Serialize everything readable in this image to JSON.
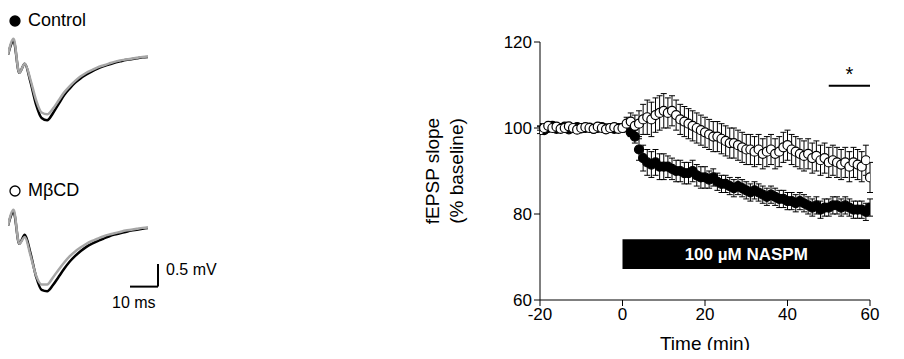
{
  "chart_data": [
    {
      "type": "scatter",
      "x_label": "Time (min)",
      "y_label": "fEPSP slope (% baseline)",
      "x": [
        -20,
        -19,
        -18,
        -17,
        -16,
        -15,
        -14,
        -13,
        -12,
        -11,
        -10,
        -9,
        -8,
        -7,
        -6,
        -5,
        -4,
        -3,
        -2,
        -1,
        0,
        1,
        2,
        3,
        4,
        5,
        6,
        7,
        8,
        9,
        10,
        11,
        12,
        13,
        14,
        15,
        16,
        17,
        18,
        19,
        20,
        21,
        22,
        23,
        24,
        25,
        26,
        27,
        28,
        29,
        30,
        31,
        32,
        33,
        34,
        35,
        36,
        37,
        38,
        39,
        40,
        41,
        42,
        43,
        44,
        45,
        46,
        47,
        48,
        49,
        50,
        51,
        52,
        53,
        54,
        55,
        56,
        57,
        58,
        59,
        60
      ],
      "series": [
        {
          "name": "Control",
          "color": "#000000",
          "marker": "filled_circle",
          "values": [
            100,
            99.5,
            100,
            100.5,
            99.8,
            100,
            100.3,
            99.7,
            100,
            100.2,
            99.9,
            100,
            100.1,
            99.8,
            100,
            100.2,
            99.9,
            100,
            99.8,
            100,
            100,
            100.5,
            99,
            98,
            95,
            93,
            92,
            91.5,
            92,
            91,
            91,
            91,
            90.5,
            90,
            90,
            89.5,
            89.5,
            90,
            89,
            88.5,
            88.5,
            88,
            88.5,
            87.5,
            87,
            87,
            86.5,
            86,
            86.5,
            86,
            85.5,
            85,
            85.5,
            85,
            84.5,
            84,
            84.5,
            84,
            83.5,
            83.5,
            83,
            83,
            82.5,
            83,
            82.5,
            82,
            81.5,
            82,
            81,
            81.5,
            81.5,
            82,
            82,
            81.5,
            82,
            81.5,
            81,
            81,
            81,
            80.5,
            81.5
          ],
          "errors": [
            0.5,
            0.5,
            0.5,
            0.5,
            0.5,
            0.5,
            0.5,
            0.5,
            0.5,
            0.5,
            0.5,
            0.5,
            0.5,
            0.5,
            0.5,
            0.5,
            0.5,
            0.5,
            0.5,
            0.5,
            0.5,
            0.6,
            1,
            1.5,
            2.5,
            3,
            3,
            3,
            3,
            3,
            3,
            2.5,
            2.5,
            2.5,
            2.5,
            2.5,
            2.5,
            2.5,
            2.5,
            2.5,
            2.5,
            2,
            2,
            2,
            2,
            2,
            2,
            2,
            2,
            2,
            2,
            2,
            2,
            2,
            2,
            2,
            2,
            2,
            2,
            2,
            2,
            2,
            2,
            2,
            2,
            2,
            2,
            2,
            2,
            2,
            2,
            2,
            2,
            2,
            2,
            2,
            2,
            2,
            2,
            2,
            2
          ]
        },
        {
          "name": "MβCD",
          "color": "#000000",
          "marker": "open_circle",
          "values": [
            99.5,
            100,
            100.5,
            100,
            100.3,
            99.8,
            100,
            100.4,
            100,
            99.6,
            100,
            100.2,
            100,
            99.8,
            100.3,
            100,
            99.7,
            100,
            100.2,
            99.8,
            100,
            101,
            101.5,
            100.5,
            101,
            102,
            102.5,
            102,
            103,
            103.5,
            104,
            103.5,
            104,
            103,
            102,
            101.5,
            101,
            100.5,
            100,
            99.5,
            99,
            98.5,
            98,
            98,
            97.5,
            97,
            96.5,
            96.5,
            96,
            95.5,
            95,
            95,
            94.5,
            95,
            94,
            94.5,
            95,
            94,
            94.5,
            95.5,
            96,
            95,
            94.5,
            94,
            93.5,
            94,
            93,
            93.5,
            92.5,
            93,
            92,
            92.5,
            92,
            91.5,
            92,
            91,
            92,
            91.5,
            91,
            92.5,
            88.5
          ],
          "errors": [
            0.8,
            0.8,
            0.8,
            0.8,
            0.8,
            0.8,
            0.8,
            0.8,
            0.8,
            0.8,
            0.8,
            0.8,
            0.8,
            0.8,
            0.8,
            0.8,
            0.8,
            0.8,
            0.8,
            0.8,
            1,
            1.5,
            2,
            2.5,
            3,
            3.5,
            4,
            4,
            4,
            4,
            4,
            3.5,
            3.5,
            3.5,
            3.5,
            3.5,
            3.5,
            3.5,
            3.5,
            3.5,
            3.5,
            3.5,
            3.5,
            3.5,
            3.5,
            3.5,
            3.5,
            3.5,
            3.5,
            3.5,
            3.5,
            3.5,
            3.5,
            3.5,
            3.5,
            3.5,
            3.5,
            3.5,
            3.5,
            3.5,
            3.5,
            3.5,
            3.5,
            3.5,
            3.5,
            3.5,
            3.5,
            3.5,
            3.5,
            3.5,
            3.5,
            3.5,
            3.5,
            3.5,
            3.5,
            3.5,
            3.5,
            3.5,
            3.5,
            3.5,
            3.5
          ]
        }
      ],
      "xlim": [
        -20,
        60
      ],
      "ylim": [
        60,
        120
      ],
      "xticks": [
        -20,
        0,
        20,
        40,
        60
      ],
      "yticks": [
        60,
        80,
        100,
        120
      ],
      "drug_bar": {
        "label": "100 µM NASPM",
        "x": [
          0,
          60
        ]
      },
      "significance": {
        "label": "*",
        "x": [
          50,
          60
        ]
      }
    },
    {
      "type": "line",
      "tick_labels": false,
      "x": [
        0,
        2,
        4,
        6,
        8,
        10,
        12,
        14,
        16,
        18,
        20,
        22,
        24,
        26,
        28,
        30,
        32,
        34,
        36,
        38,
        40,
        42,
        44,
        46,
        48,
        50
      ],
      "series": [
        {
          "color": "#000000",
          "values": [
            0,
            0.3,
            -0.4,
            -0.2,
            -0.6,
            -1.1,
            -1.4,
            -1.45,
            -1.3,
            -1.1,
            -0.9,
            -0.75,
            -0.62,
            -0.52,
            -0.44,
            -0.37,
            -0.31,
            -0.26,
            -0.22,
            -0.18,
            -0.15,
            -0.12,
            -0.1,
            -0.08,
            -0.06,
            -0.05
          ]
        },
        {
          "color": "#a6a6a6",
          "values": [
            0,
            0.35,
            -0.4,
            -0.2,
            -0.55,
            -1,
            -1.28,
            -1.32,
            -1.2,
            -1.02,
            -0.84,
            -0.7,
            -0.58,
            -0.48,
            -0.4,
            -0.34,
            -0.28,
            -0.24,
            -0.2,
            -0.16,
            -0.13,
            -0.11,
            -0.09,
            -0.07,
            -0.05,
            -0.04
          ]
        }
      ],
      "xlim": [
        0,
        50
      ],
      "ylim": [
        -1.6,
        0.5
      ]
    },
    {
      "type": "line",
      "tick_labels": false,
      "x": [
        0,
        2,
        4,
        6,
        8,
        10,
        12,
        14,
        16,
        18,
        20,
        22,
        24,
        26,
        28,
        30,
        32,
        34,
        36,
        38,
        40,
        42,
        44,
        46,
        48,
        50
      ],
      "series": [
        {
          "color": "#000000",
          "values": [
            0,
            0.3,
            -0.4,
            -0.2,
            -0.6,
            -1.12,
            -1.42,
            -1.45,
            -1.32,
            -1.14,
            -0.96,
            -0.8,
            -0.67,
            -0.56,
            -0.47,
            -0.4,
            -0.34,
            -0.29,
            -0.24,
            -0.2,
            -0.17,
            -0.14,
            -0.11,
            -0.09,
            -0.07,
            -0.05
          ]
        },
        {
          "color": "#a6a6a6",
          "values": [
            0,
            0.35,
            -0.4,
            -0.25,
            -0.65,
            -1.1,
            -1.3,
            -1.3,
            -1.15,
            -0.98,
            -0.82,
            -0.68,
            -0.57,
            -0.48,
            -0.4,
            -0.34,
            -0.29,
            -0.24,
            -0.2,
            -0.17,
            -0.14,
            -0.11,
            -0.09,
            -0.07,
            -0.05,
            -0.04
          ]
        }
      ],
      "xlim": [
        0,
        50
      ],
      "ylim": [
        -1.6,
        0.5
      ],
      "scale_bar": {
        "x": 10,
        "x_label": "10 ms",
        "y": 0.5,
        "y_label": "0.5 mV"
      }
    }
  ]
}
